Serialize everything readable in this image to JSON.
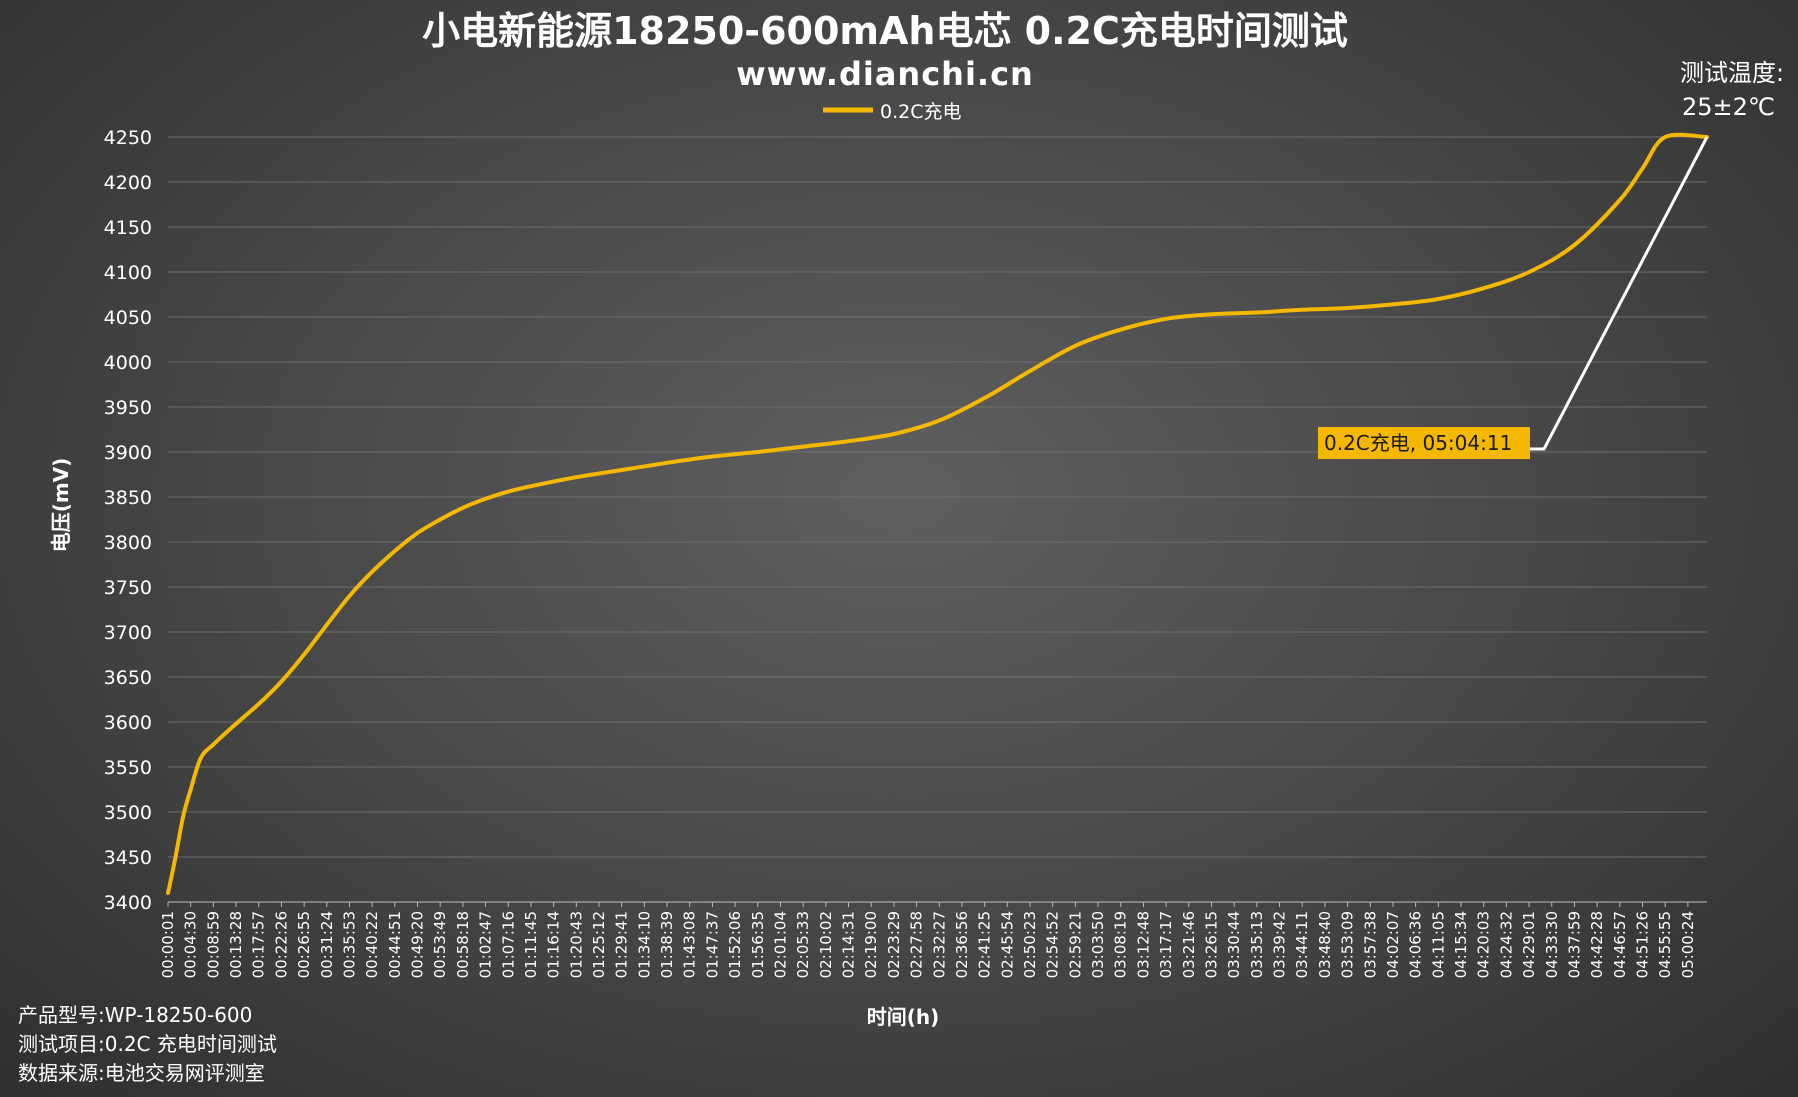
{
  "title": "小电新能源18250-600mAh电芯 0.2C充电时间测试",
  "subtitle": "www.dianchi.cn",
  "temperature": {
    "label": "测试温度:",
    "value": "25±2℃"
  },
  "footer": {
    "lines": [
      "产品型号:WP-18250-600",
      "测试项目:0.2C 充电时间测试",
      "数据来源:电池交易网评测室"
    ]
  },
  "colors": {
    "series": "#F5B800",
    "annotation_bg": "#F5B800",
    "leader": "#ffffff",
    "grid": "#6e6e6e"
  },
  "chart_data": {
    "type": "line",
    "title": "小电新能源18250-600mAh电芯 0.2C充电时间测试",
    "xlabel": "时间(h)",
    "ylabel": "电压(mV)",
    "ylim": [
      3400,
      4250
    ],
    "yticks": [
      3400,
      3450,
      3500,
      3550,
      3600,
      3650,
      3700,
      3750,
      3800,
      3850,
      3900,
      3950,
      4000,
      4050,
      4100,
      4150,
      4200,
      4250
    ],
    "xlim": [
      "00:00:01",
      "05:04:11"
    ],
    "xticks": [
      "00:00:01",
      "00:04:30",
      "00:08:59",
      "00:13:28",
      "00:17:57",
      "00:22:26",
      "00:26:55",
      "00:31:24",
      "00:35:53",
      "00:40:22",
      "00:44:51",
      "00:49:20",
      "00:53:49",
      "00:58:18",
      "01:02:47",
      "01:07:16",
      "01:11:45",
      "01:16:14",
      "01:20:43",
      "01:25:12",
      "01:29:41",
      "01:34:10",
      "01:38:39",
      "01:43:08",
      "01:47:37",
      "01:52:06",
      "01:56:35",
      "02:01:04",
      "02:05:33",
      "02:10:02",
      "02:14:31",
      "02:19:00",
      "02:23:29",
      "02:27:58",
      "02:32:27",
      "02:36:56",
      "02:41:25",
      "02:45:54",
      "02:50:23",
      "02:54:52",
      "02:59:21",
      "03:03:50",
      "03:08:19",
      "03:12:48",
      "03:17:17",
      "03:21:46",
      "03:26:15",
      "03:30:44",
      "03:35:13",
      "03:39:42",
      "03:44:11",
      "03:48:40",
      "03:53:09",
      "03:57:38",
      "04:02:07",
      "04:06:36",
      "04:11:05",
      "04:15:34",
      "04:20:03",
      "04:24:32",
      "04:29:01",
      "04:33:30",
      "04:37:59",
      "04:42:28",
      "04:46:57",
      "04:51:26",
      "04:55:55",
      "05:00:24"
    ],
    "grid": true,
    "legend_position": "top-center",
    "series": [
      {
        "name": "0.2C充电",
        "points": [
          [
            "00:00:01",
            3410
          ],
          [
            "00:01:30",
            3450
          ],
          [
            "00:03:00",
            3495
          ],
          [
            "00:04:30",
            3525
          ],
          [
            "00:06:30",
            3560
          ],
          [
            "00:08:59",
            3575
          ],
          [
            "00:13:28",
            3598
          ],
          [
            "00:17:57",
            3620
          ],
          [
            "00:22:26",
            3645
          ],
          [
            "00:26:55",
            3675
          ],
          [
            "00:31:24",
            3708
          ],
          [
            "00:35:53",
            3740
          ],
          [
            "00:40:22",
            3767
          ],
          [
            "00:44:51",
            3790
          ],
          [
            "00:49:20",
            3810
          ],
          [
            "00:53:49",
            3825
          ],
          [
            "00:58:18",
            3838
          ],
          [
            "01:02:47",
            3848
          ],
          [
            "01:07:16",
            3856
          ],
          [
            "01:11:45",
            3862
          ],
          [
            "01:20:43",
            3872
          ],
          [
            "01:29:41",
            3880
          ],
          [
            "01:38:39",
            3888
          ],
          [
            "01:47:37",
            3895
          ],
          [
            "01:56:35",
            3900
          ],
          [
            "02:05:33",
            3906
          ],
          [
            "02:14:31",
            3912
          ],
          [
            "02:23:29",
            3920
          ],
          [
            "02:32:27",
            3935
          ],
          [
            "02:41:25",
            3960
          ],
          [
            "02:50:23",
            3990
          ],
          [
            "02:59:21",
            4018
          ],
          [
            "03:08:19",
            4036
          ],
          [
            "03:17:17",
            4048
          ],
          [
            "03:26:15",
            4053
          ],
          [
            "03:35:13",
            4055
          ],
          [
            "03:44:11",
            4058
          ],
          [
            "03:53:09",
            4060
          ],
          [
            "04:02:07",
            4064
          ],
          [
            "04:11:05",
            4070
          ],
          [
            "04:20:03",
            4082
          ],
          [
            "04:29:01",
            4100
          ],
          [
            "04:37:59",
            4130
          ],
          [
            "04:46:57",
            4180
          ],
          [
            "04:51:26",
            4215
          ],
          [
            "04:55:55",
            4250
          ],
          [
            "05:04:11",
            4250
          ]
        ]
      }
    ],
    "annotation": {
      "text": "0.2C充电, 05:04:11",
      "x": "05:04:11",
      "y": 4250
    }
  }
}
